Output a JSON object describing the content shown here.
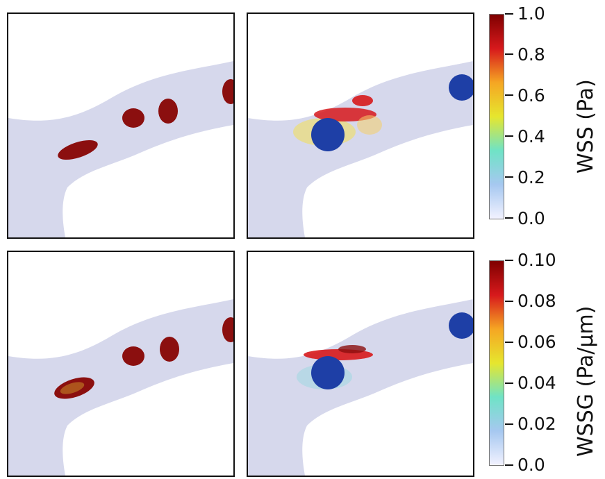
{
  "colorbars": [
    {
      "title": "WSS (Pa)",
      "ticks": [
        "1.0",
        "0.8",
        "0.6",
        "0.4",
        "0.2",
        "0.0"
      ]
    },
    {
      "title": "WSSG (Pa/μm)",
      "ticks": [
        "0.10",
        "0.08",
        "0.06",
        "0.04",
        "0.02",
        "0.0"
      ]
    }
  ],
  "colormap": [
    "#7f0000",
    "#d7191c",
    "#f5a623",
    "#e6e62e",
    "#6fe3c6",
    "#a6c8f0",
    "#f2f2ff"
  ],
  "panels": [
    {
      "name": "wss-deformable-cells-panel",
      "cell_color": "#8b0f0f"
    },
    {
      "name": "wss-rigid-sphere-panel",
      "sphere_color": "#1e3fa6"
    },
    {
      "name": "wssg-deformable-cells-panel",
      "cell_color": "#8b0f0f"
    },
    {
      "name": "wssg-rigid-sphere-panel",
      "sphere_color": "#1e3fa6"
    }
  ]
}
